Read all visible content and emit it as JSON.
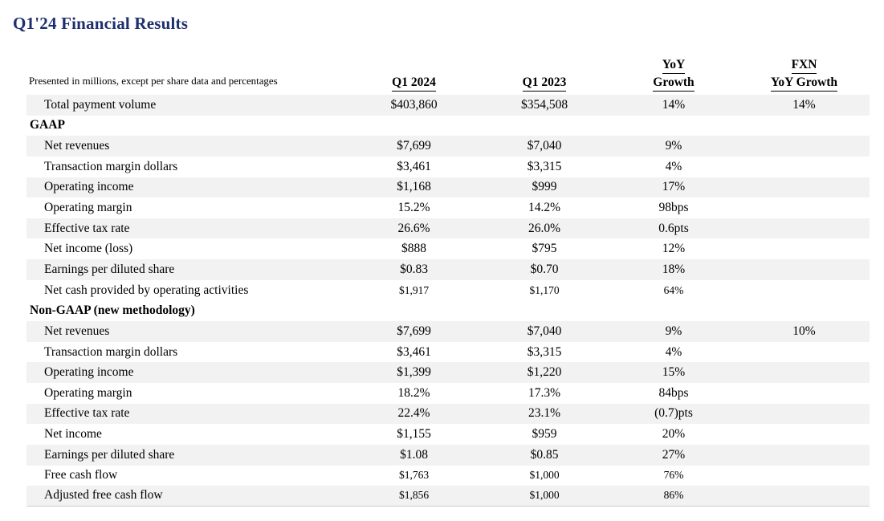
{
  "title": "Q1'24 Financial Results",
  "colors": {
    "title_navy": "#1e2f6d",
    "row_shade": "#f2f2f2"
  },
  "table": {
    "note": "Presented in millions, except per share data and percentages",
    "columns": [
      {
        "id": "q1-2024",
        "lines": [
          "Q1 2024"
        ]
      },
      {
        "id": "q1-2023",
        "lines": [
          "Q1 2023"
        ]
      },
      {
        "id": "yoy-growth",
        "lines": [
          "YoY",
          "Growth"
        ]
      },
      {
        "id": "fxn-yoy-growth",
        "lines": [
          "FXN",
          "YoY Growth"
        ]
      }
    ],
    "rows": [
      {
        "type": "data",
        "shaded": true,
        "label": "Total payment volume",
        "values": [
          "$403,860",
          "$354,508",
          "14%",
          "14%"
        ]
      },
      {
        "type": "section",
        "shaded": false,
        "label": "GAAP",
        "values": [
          "",
          "",
          "",
          ""
        ]
      },
      {
        "type": "data",
        "shaded": true,
        "label": "Net revenues",
        "values": [
          "$7,699",
          "$7,040",
          "9%",
          ""
        ]
      },
      {
        "type": "data",
        "shaded": false,
        "label": "Transaction margin dollars",
        "values": [
          "$3,461",
          "$3,315",
          "4%",
          ""
        ]
      },
      {
        "type": "data",
        "shaded": true,
        "label": "Operating income",
        "values": [
          "$1,168",
          "$999",
          "17%",
          ""
        ]
      },
      {
        "type": "data",
        "shaded": false,
        "label": "Operating margin",
        "values": [
          "15.2%",
          "14.2%",
          "98bps",
          ""
        ]
      },
      {
        "type": "data",
        "shaded": true,
        "label": "Effective tax rate",
        "values": [
          "26.6%",
          "26.0%",
          "0.6pts",
          ""
        ]
      },
      {
        "type": "data",
        "shaded": false,
        "label": "Net income (loss)",
        "values": [
          "$888",
          "$795",
          "12%",
          ""
        ]
      },
      {
        "type": "data",
        "shaded": true,
        "label": "Earnings per diluted share",
        "values": [
          "$0.83",
          "$0.70",
          "18%",
          ""
        ]
      },
      {
        "type": "data",
        "shaded": false,
        "label": "Net cash provided by operating activities",
        "values": [
          "$1,917",
          "$1,170",
          "64%",
          ""
        ],
        "small_values": true
      },
      {
        "type": "section",
        "shaded": false,
        "label": "Non-GAAP (new methodology)",
        "values": [
          "",
          "",
          "",
          ""
        ]
      },
      {
        "type": "data",
        "shaded": true,
        "label": "Net revenues",
        "values": [
          "$7,699",
          "$7,040",
          "9%",
          "10%"
        ]
      },
      {
        "type": "data",
        "shaded": false,
        "label": "Transaction margin dollars",
        "values": [
          "$3,461",
          "$3,315",
          "4%",
          ""
        ]
      },
      {
        "type": "data",
        "shaded": true,
        "label": "Operating income",
        "values": [
          "$1,399",
          "$1,220",
          "15%",
          ""
        ]
      },
      {
        "type": "data",
        "shaded": false,
        "label": "Operating margin",
        "values": [
          "18.2%",
          "17.3%",
          "84bps",
          ""
        ]
      },
      {
        "type": "data",
        "shaded": true,
        "label": "Effective tax rate",
        "values": [
          "22.4%",
          "23.1%",
          "(0.7)pts",
          ""
        ]
      },
      {
        "type": "data",
        "shaded": false,
        "label": "Net income",
        "values": [
          "$1,155",
          "$959",
          "20%",
          ""
        ]
      },
      {
        "type": "data",
        "shaded": true,
        "label": "Earnings per diluted share",
        "values": [
          "$1.08",
          "$0.85",
          "27%",
          ""
        ]
      },
      {
        "type": "data",
        "shaded": false,
        "label": "Free cash flow",
        "values": [
          "$1,763",
          "$1,000",
          "76%",
          ""
        ],
        "small_values": true
      },
      {
        "type": "data",
        "shaded": true,
        "label": "Adjusted free cash flow",
        "values": [
          "$1,856",
          "$1,000",
          "86%",
          ""
        ],
        "small_values": true
      }
    ]
  }
}
